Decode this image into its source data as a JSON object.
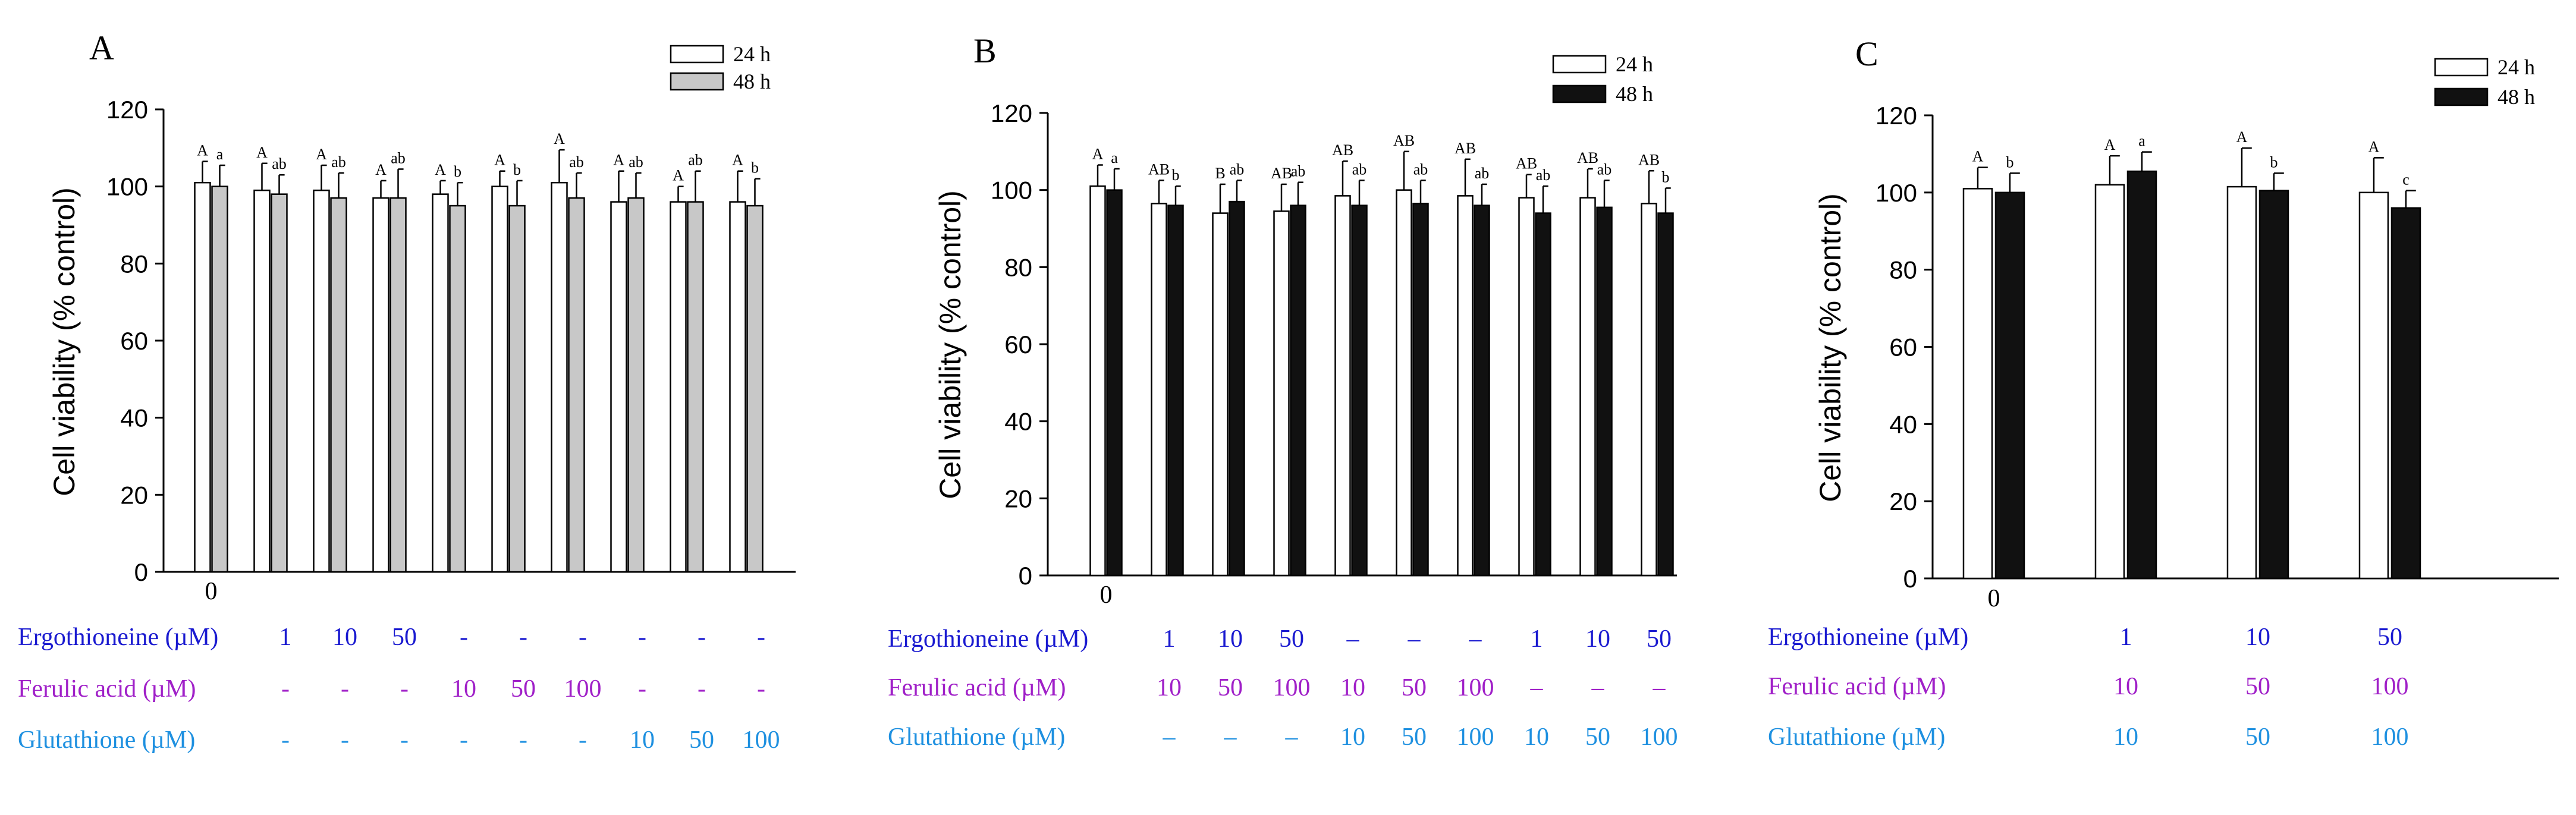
{
  "chart_data": [
    {
      "panel": "A",
      "type": "bar",
      "ylabel": "Cell viability (% control)",
      "ylim": [
        0,
        120
      ],
      "yticks": [
        0,
        20,
        40,
        60,
        80,
        100,
        120
      ],
      "legend_position": "top-right",
      "xtick_labels": [
        "0"
      ],
      "group_count": 10,
      "series": [
        {
          "name": "24 h",
          "color": "#ffffff",
          "values": [
            101,
            99,
            99,
            97,
            98,
            100,
            101,
            96,
            96,
            96
          ],
          "errors": [
            5.5,
            7,
            6.5,
            4.5,
            3.5,
            4,
            8.5,
            8,
            4,
            8
          ],
          "letters": [
            "A",
            "A",
            "A",
            "A",
            "A",
            "A",
            "A",
            "A",
            "A",
            "A"
          ]
        },
        {
          "name": "48 h",
          "color": "#c8c8c8",
          "values": [
            100,
            98,
            97,
            97,
            95,
            95,
            97,
            97,
            96,
            95
          ],
          "errors": [
            5.5,
            5,
            6.5,
            7.5,
            6,
            6.5,
            6.5,
            6.5,
            8,
            7
          ],
          "letters": [
            "a",
            "ab",
            "ab",
            "ab",
            "b",
            "b",
            "ab",
            "ab",
            "ab",
            "b"
          ]
        }
      ],
      "treatments": [
        {
          "label": "Ergothioneine (µM)",
          "color": "#1a1ad0",
          "values": [
            "",
            "1",
            "10",
            "50",
            "-",
            "-",
            "-",
            "-",
            "-",
            "-"
          ]
        },
        {
          "label": "Ferulic acid (µM)",
          "color": "#a020c8",
          "values": [
            "",
            "-",
            "-",
            "-",
            "10",
            "50",
            "100",
            "-",
            "-",
            "-"
          ]
        },
        {
          "label": "Glutathione (µM)",
          "color": "#1e90e0",
          "values": [
            "",
            "-",
            "-",
            "-",
            "-",
            "-",
            "-",
            "10",
            "50",
            "100"
          ]
        }
      ]
    },
    {
      "panel": "B",
      "type": "bar",
      "ylabel": "Cell viability (% control)",
      "ylim": [
        0,
        120
      ],
      "yticks": [
        0,
        20,
        40,
        60,
        80,
        100,
        120
      ],
      "legend_position": "top-right",
      "xtick_labels": [
        "0"
      ],
      "group_count": 10,
      "series": [
        {
          "name": "24 h",
          "color": "#ffffff",
          "values": [
            101,
            96.5,
            94,
            94.5,
            98.5,
            100,
            98.5,
            98,
            98,
            96.5
          ],
          "errors": [
            5.5,
            6,
            7.5,
            7,
            9,
            10,
            9.5,
            6,
            7.5,
            8.5
          ],
          "letters": [
            "A",
            "AB",
            "B",
            "AB",
            "AB",
            "AB",
            "AB",
            "AB",
            "AB",
            "AB"
          ]
        },
        {
          "name": "48 h",
          "color": "#111111",
          "values": [
            100,
            96,
            97,
            96,
            96,
            96.5,
            96,
            94,
            95.5,
            94
          ],
          "errors": [
            5.5,
            5,
            5.5,
            6,
            6.5,
            6,
            5.5,
            7,
            7,
            6.5
          ],
          "letters": [
            "a",
            "b",
            "ab",
            "ab",
            "ab",
            "ab",
            "ab",
            "ab",
            "ab",
            "b"
          ]
        }
      ],
      "treatments": [
        {
          "label": "Ergothioneine (µM)",
          "color": "#1a1ad0",
          "values": [
            "",
            "1",
            "10",
            "50",
            "–",
            "–",
            "–",
            "1",
            "10",
            "50"
          ]
        },
        {
          "label": "Ferulic acid  (µM)",
          "color": "#a020c8",
          "values": [
            "",
            "10",
            "50",
            "100",
            "10",
            "50",
            "100",
            "–",
            "–",
            "–"
          ]
        },
        {
          "label": "Glutathione (µM)",
          "color": "#1e90e0",
          "values": [
            "",
            "–",
            "–",
            "–",
            "10",
            "50",
            "100",
            "10",
            "50",
            "100"
          ]
        }
      ]
    },
    {
      "panel": "C",
      "type": "bar",
      "ylabel": "Cell viability (% control)",
      "ylim": [
        0,
        120
      ],
      "yticks": [
        0,
        20,
        40,
        60,
        80,
        100,
        120
      ],
      "legend_position": "top-right",
      "xtick_labels": [
        "0"
      ],
      "group_count": 4,
      "series": [
        {
          "name": "24 h",
          "color": "#ffffff",
          "values": [
            101,
            102,
            101.5,
            100
          ],
          "errors": [
            5.5,
            7.5,
            10,
            9
          ],
          "letters": [
            "A",
            "A",
            "A",
            "A"
          ]
        },
        {
          "name": "48 h",
          "color": "#111111",
          "values": [
            100,
            105.5,
            100.5,
            96
          ],
          "errors": [
            5,
            5,
            4.5,
            4.5
          ],
          "letters": [
            "b",
            "a",
            "b",
            "c"
          ]
        }
      ],
      "treatments": [
        {
          "label": "Ergothioneine (µM)",
          "color": "#1a1ad0",
          "values": [
            "",
            "1",
            "10",
            "50"
          ]
        },
        {
          "label": "Ferulic acid  (µM)",
          "color": "#a020c8",
          "values": [
            "",
            "10",
            "50",
            "100"
          ]
        },
        {
          "label": "Glutathione (µM)",
          "color": "#1e90e0",
          "values": [
            "",
            "10",
            "50",
            "100"
          ]
        }
      ]
    }
  ]
}
